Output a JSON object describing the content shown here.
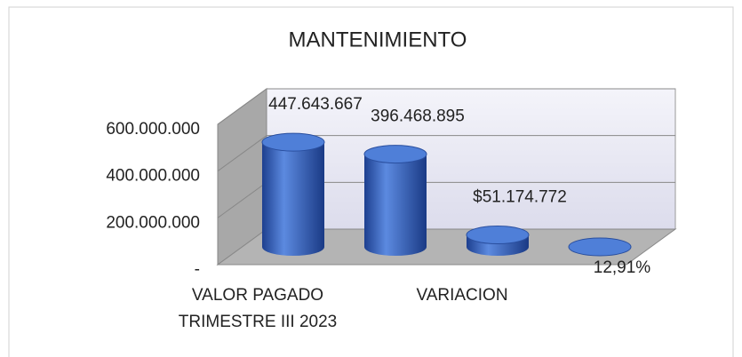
{
  "chart_data": {
    "type": "bar3d",
    "title": "MANTENIMIENTO",
    "categories": [
      "VALOR PAGADO\nTRIMESTRE III 2023",
      null,
      "VARIACION",
      null
    ],
    "values": [
      447643667,
      396468895,
      51174772,
      12.91
    ],
    "value_labels": [
      "447.643.667",
      "396.468.895",
      "$51.174.772",
      "12,91%"
    ],
    "color": "#3a66c4",
    "ylim": [
      0,
      600000000
    ],
    "yticks": [
      {
        "value": 0,
        "label": "-"
      },
      {
        "value": 200000000,
        "label": "200.000.000"
      },
      {
        "value": 400000000,
        "label": "400.000.000"
      },
      {
        "value": 600000000,
        "label": "600.000.000"
      }
    ],
    "grid": true
  }
}
